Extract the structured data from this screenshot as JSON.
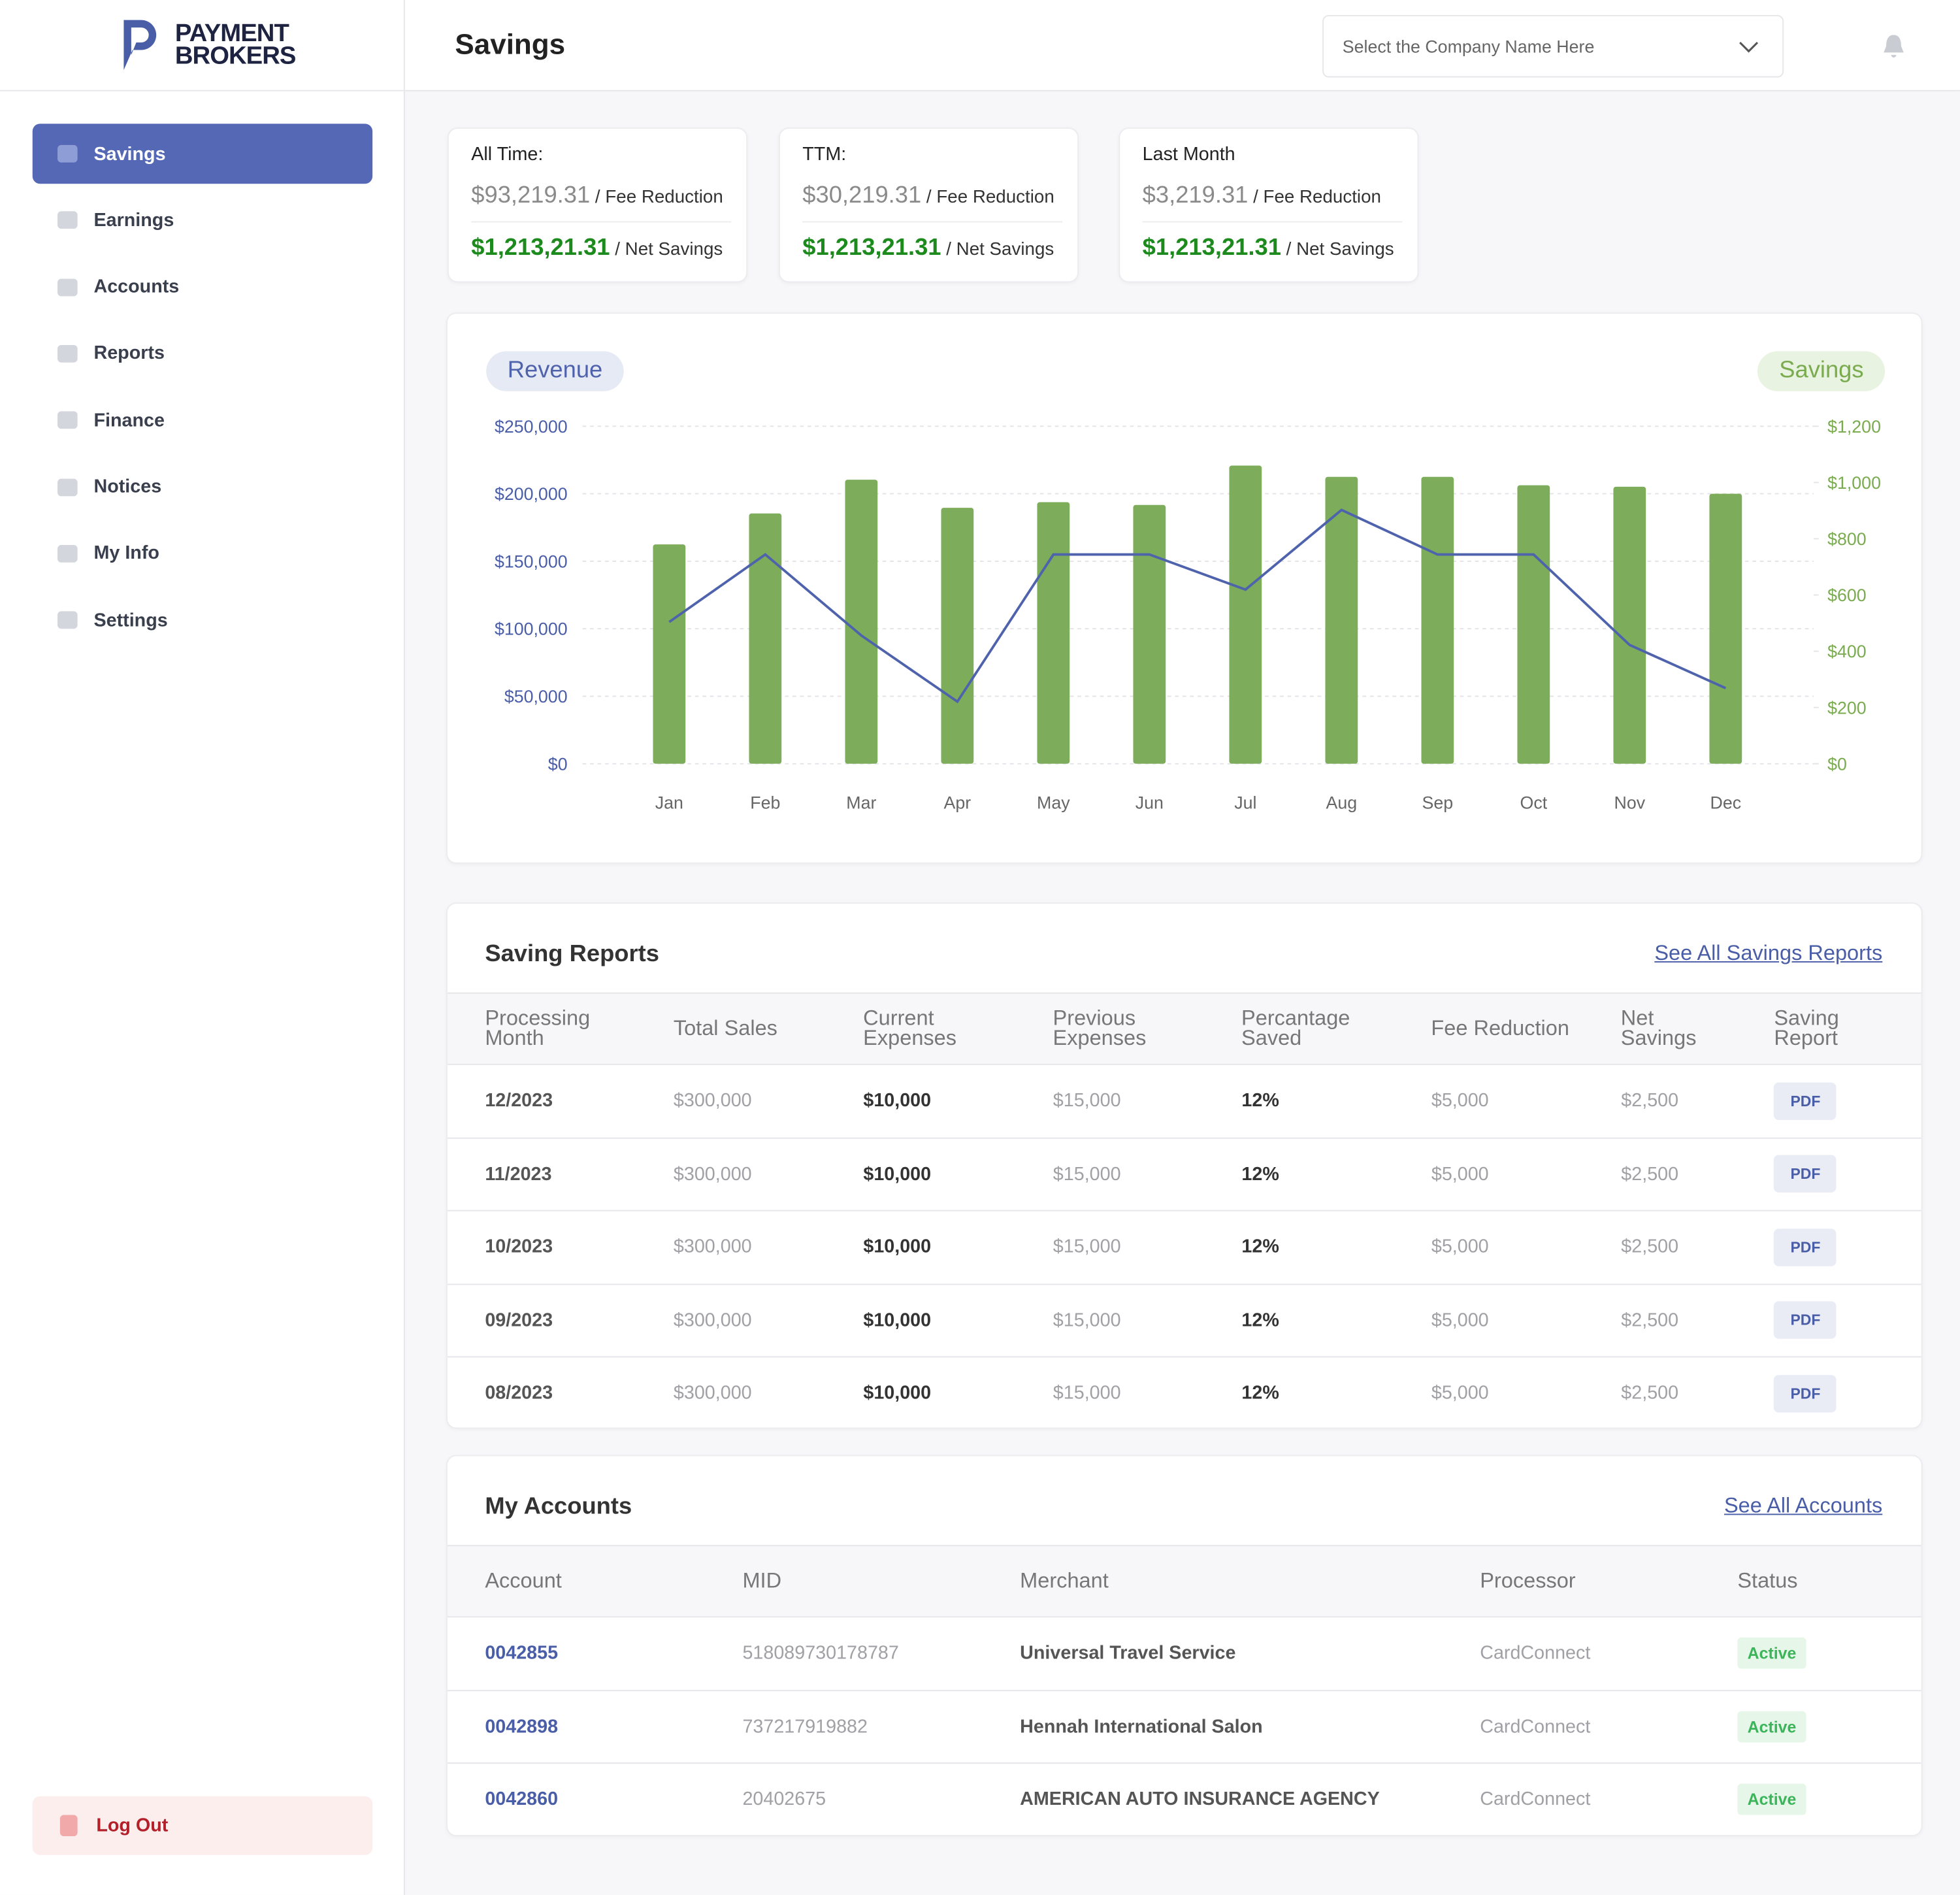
{
  "sidebar": {
    "logo": [
      "PAYMENT",
      "BROKERS"
    ],
    "nav": [
      "Savings",
      "Earnings",
      "Accounts",
      "Reports",
      "Finance",
      "Notices",
      "My Info",
      "Settings"
    ],
    "logout": "Log Out"
  },
  "header": {
    "title": "Savings",
    "company_select": "Select the Company Name Here"
  },
  "summary_cards": [
    {
      "label": "All Time:",
      "fee_reduction": "$93,219.31",
      "fee_reduction_label": "/ Fee Reduction",
      "net_savings": "$1,213,21.31",
      "net_savings_label": "/ Net Savings"
    },
    {
      "label": "TTM:",
      "fee_reduction": "$30,219.31",
      "fee_reduction_label": "/ Fee Reduction",
      "net_savings": "$1,213,21.31",
      "net_savings_label": "/ Net Savings"
    },
    {
      "label": "Last Month",
      "fee_reduction": "$3,219.31",
      "fee_reduction_label": "/ Fee Reduction",
      "net_savings": "$1,213,21.31",
      "net_savings_label": "/ Net Savings"
    }
  ],
  "chart_data": {
    "type": "combo",
    "categories": [
      "Jan",
      "Feb",
      "Mar",
      "Apr",
      "May",
      "Jun",
      "Jul",
      "Aug",
      "Sep",
      "Oct",
      "Nov",
      "Dec"
    ],
    "series": [
      {
        "name": "Revenue",
        "type": "line",
        "color": "#4f63ad",
        "values": [
          105000,
          155000,
          95000,
          46000,
          155000,
          155000,
          129000,
          188000,
          155000,
          155000,
          88000,
          56000
        ]
      },
      {
        "name": "Savings",
        "type": "bar",
        "axis": "y2",
        "color": "#7dac5a",
        "values": [
          780,
          890,
          1010,
          910,
          930,
          920,
          1060,
          1020,
          1020,
          990,
          985,
          960
        ]
      }
    ],
    "ylim": [
      0,
      250000
    ],
    "yticks": [
      {
        "value": 0,
        "label": "$0"
      },
      {
        "value": 50000,
        "label": "$50,000"
      },
      {
        "value": 100000,
        "label": "$100,000"
      },
      {
        "value": 150000,
        "label": "$150,000"
      },
      {
        "value": 200000,
        "label": "$200,000"
      },
      {
        "value": 250000,
        "label": "$250,000"
      }
    ],
    "y2lim": [
      0,
      1200
    ],
    "y2ticks": [
      {
        "value": 0,
        "label": "$0"
      },
      {
        "value": 200,
        "label": "$200"
      },
      {
        "value": 400,
        "label": "$400"
      },
      {
        "value": 600,
        "label": "$600"
      },
      {
        "value": 800,
        "label": "$800"
      },
      {
        "value": 1000,
        "label": "$1,000"
      },
      {
        "value": 1200,
        "label": "$1,200"
      }
    ],
    "grid": true
  },
  "saving_reports": {
    "title": "Saving Reports",
    "link": "See All Savings Reports",
    "columns": [
      "Processing Month",
      "Total Sales",
      "Current Expenses",
      "Previous Expenses",
      "Percantage Saved",
      "Fee Reduction",
      "Net Savings",
      "Saving Report"
    ],
    "rows": [
      [
        "12/2023",
        "$300,000",
        "$10,000",
        "$15,000",
        "12%",
        "$5,000",
        "$2,500",
        "PDF"
      ],
      [
        "11/2023",
        "$300,000",
        "$10,000",
        "$15,000",
        "12%",
        "$5,000",
        "$2,500",
        "PDF"
      ],
      [
        "10/2023",
        "$300,000",
        "$10,000",
        "$15,000",
        "12%",
        "$5,000",
        "$2,500",
        "PDF"
      ],
      [
        "09/2023",
        "$300,000",
        "$10,000",
        "$15,000",
        "12%",
        "$5,000",
        "$2,500",
        "PDF"
      ],
      [
        "08/2023",
        "$300,000",
        "$10,000",
        "$15,000",
        "12%",
        "$5,000",
        "$2,500",
        "PDF"
      ]
    ]
  },
  "my_accounts": {
    "title": "My Accounts",
    "link": "See All Accounts",
    "columns": [
      "Account",
      "MID",
      "Merchant",
      "Processor",
      "Status"
    ],
    "rows": [
      [
        "0042855",
        "518089730178787",
        "Universal Travel Service",
        "CardConnect",
        "Active"
      ],
      [
        "0042898",
        "737217919882",
        "Hennah International Salon",
        "CardConnect",
        "Active"
      ],
      [
        "0042860",
        "20402675",
        "AMERICAN AUTO INSURANCE AGENCY",
        "CardConnect",
        "Active"
      ]
    ]
  }
}
